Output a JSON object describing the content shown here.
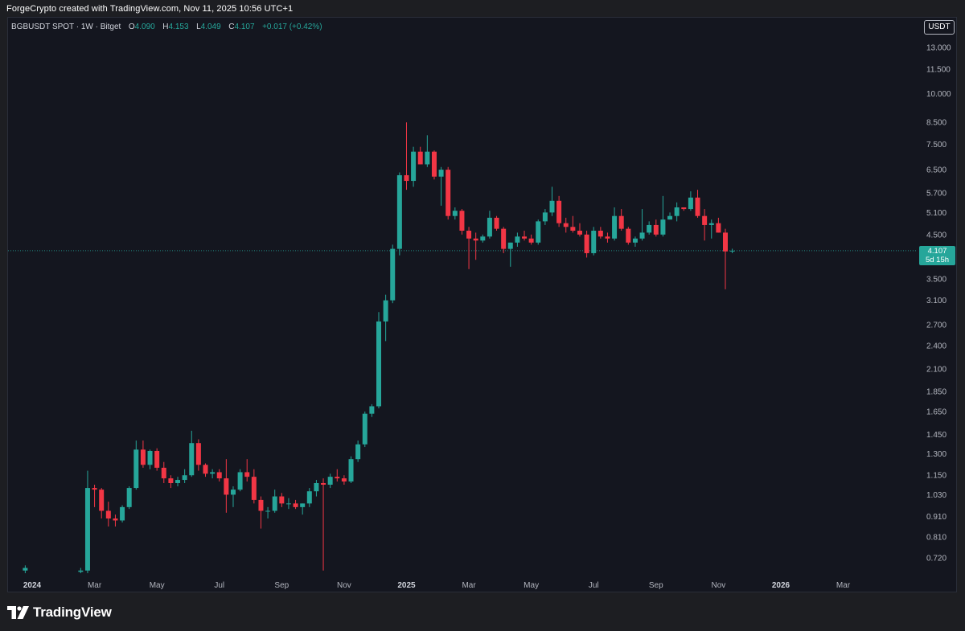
{
  "caption": "ForgeCrypto created with TradingView.com, Nov 11, 2025 10:56 UTC+1",
  "legend": {
    "symbol": "BGBUSDT SPOT · 1W · Bitget",
    "o_label": "O",
    "o_value": "4.090",
    "h_label": "H",
    "h_value": "4.153",
    "l_label": "L",
    "l_value": "4.049",
    "c_label": "C",
    "c_value": "4.107",
    "change": "+0.017 (+0.42%)"
  },
  "currency_button": "USDT",
  "price_tag": {
    "price": "4.107",
    "countdown": "5d 15h"
  },
  "brand": {
    "name": "TradingView",
    "icon": "tradingview-logo-icon"
  },
  "colors": {
    "up": "#26a69a",
    "down": "#f23645",
    "background": "#14161f",
    "frame": "#1d1e22"
  },
  "chart_data": {
    "type": "candlestick",
    "scale": "log",
    "ylim": [
      0.66,
      14.0
    ],
    "y_ticks": [
      "13.000",
      "11.500",
      "10.000",
      "8.500",
      "7.500",
      "6.500",
      "5.700",
      "5.100",
      "4.500",
      "3.500",
      "3.100",
      "2.700",
      "2.400",
      "2.100",
      "1.850",
      "1.650",
      "1.450",
      "1.300",
      "1.150",
      "1.030",
      "0.910",
      "0.810",
      "0.720"
    ],
    "x_ticks": [
      {
        "label": "2024",
        "week": 0,
        "bold": true
      },
      {
        "label": "Mar",
        "week": 9
      },
      {
        "label": "May",
        "week": 18
      },
      {
        "label": "Jul",
        "week": 27
      },
      {
        "label": "Sep",
        "week": 36
      },
      {
        "label": "Nov",
        "week": 45
      },
      {
        "label": "2025",
        "week": 54,
        "bold": true
      },
      {
        "label": "Mar",
        "week": 63
      },
      {
        "label": "May",
        "week": 72
      },
      {
        "label": "Jul",
        "week": 81
      },
      {
        "label": "Sep",
        "week": 90
      },
      {
        "label": "Nov",
        "week": 99
      },
      {
        "label": "2026",
        "week": 108,
        "bold": true
      },
      {
        "label": "Mar",
        "week": 117
      }
    ],
    "current_price": 4.107,
    "candles": [
      {
        "w": -1,
        "o": 0.67,
        "h": 0.69,
        "l": 0.66,
        "c": 0.68
      },
      {
        "w": 7,
        "o": 0.665,
        "h": 0.68,
        "l": 0.66,
        "c": 0.67
      },
      {
        "w": 8,
        "o": 0.67,
        "h": 1.18,
        "l": 0.66,
        "c": 1.07
      },
      {
        "w": 9,
        "o": 1.07,
        "h": 1.09,
        "l": 0.96,
        "c": 1.06
      },
      {
        "w": 10,
        "o": 1.06,
        "h": 1.07,
        "l": 0.9,
        "c": 0.94
      },
      {
        "w": 11,
        "o": 0.94,
        "h": 0.99,
        "l": 0.86,
        "c": 0.9
      },
      {
        "w": 12,
        "o": 0.9,
        "h": 0.92,
        "l": 0.86,
        "c": 0.89
      },
      {
        "w": 13,
        "o": 0.89,
        "h": 0.97,
        "l": 0.88,
        "c": 0.96
      },
      {
        "w": 14,
        "o": 0.96,
        "h": 1.08,
        "l": 0.95,
        "c": 1.07
      },
      {
        "w": 15,
        "o": 1.07,
        "h": 1.4,
        "l": 1.06,
        "c": 1.33
      },
      {
        "w": 16,
        "o": 1.33,
        "h": 1.4,
        "l": 1.2,
        "c": 1.22
      },
      {
        "w": 17,
        "o": 1.22,
        "h": 1.33,
        "l": 1.19,
        "c": 1.32
      },
      {
        "w": 18,
        "o": 1.32,
        "h": 1.34,
        "l": 1.18,
        "c": 1.2
      },
      {
        "w": 19,
        "o": 1.2,
        "h": 1.24,
        "l": 1.1,
        "c": 1.13
      },
      {
        "w": 20,
        "o": 1.13,
        "h": 1.15,
        "l": 1.07,
        "c": 1.1
      },
      {
        "w": 21,
        "o": 1.1,
        "h": 1.14,
        "l": 1.08,
        "c": 1.12
      },
      {
        "w": 22,
        "o": 1.12,
        "h": 1.19,
        "l": 1.1,
        "c": 1.15
      },
      {
        "w": 23,
        "o": 1.15,
        "h": 1.48,
        "l": 1.14,
        "c": 1.38
      },
      {
        "w": 24,
        "o": 1.38,
        "h": 1.41,
        "l": 1.18,
        "c": 1.22
      },
      {
        "w": 25,
        "o": 1.22,
        "h": 1.23,
        "l": 1.14,
        "c": 1.16
      },
      {
        "w": 26,
        "o": 1.16,
        "h": 1.19,
        "l": 1.13,
        "c": 1.17
      },
      {
        "w": 27,
        "o": 1.17,
        "h": 1.19,
        "l": 1.11,
        "c": 1.13
      },
      {
        "w": 28,
        "o": 1.13,
        "h": 1.26,
        "l": 0.93,
        "c": 1.03
      },
      {
        "w": 29,
        "o": 1.03,
        "h": 1.08,
        "l": 0.96,
        "c": 1.06
      },
      {
        "w": 30,
        "o": 1.06,
        "h": 1.19,
        "l": 1.05,
        "c": 1.17
      },
      {
        "w": 31,
        "o": 1.17,
        "h": 1.26,
        "l": 1.11,
        "c": 1.14
      },
      {
        "w": 32,
        "o": 1.14,
        "h": 1.19,
        "l": 0.98,
        "c": 1.0
      },
      {
        "w": 33,
        "o": 1.0,
        "h": 1.02,
        "l": 0.85,
        "c": 0.94
      },
      {
        "w": 34,
        "o": 0.94,
        "h": 0.96,
        "l": 0.9,
        "c": 0.94
      },
      {
        "w": 35,
        "o": 0.94,
        "h": 1.06,
        "l": 0.93,
        "c": 1.02
      },
      {
        "w": 36,
        "o": 1.02,
        "h": 1.04,
        "l": 0.96,
        "c": 0.98
      },
      {
        "w": 37,
        "o": 0.98,
        "h": 1.01,
        "l": 0.95,
        "c": 0.98
      },
      {
        "w": 38,
        "o": 0.98,
        "h": 1.0,
        "l": 0.95,
        "c": 0.96
      },
      {
        "w": 39,
        "o": 0.96,
        "h": 0.98,
        "l": 0.92,
        "c": 0.98
      },
      {
        "w": 40,
        "o": 0.98,
        "h": 1.07,
        "l": 0.96,
        "c": 1.05
      },
      {
        "w": 41,
        "o": 1.05,
        "h": 1.12,
        "l": 1.02,
        "c": 1.1
      },
      {
        "w": 42,
        "o": 1.1,
        "h": 1.13,
        "l": 0.67,
        "c": 1.09
      },
      {
        "w": 43,
        "o": 1.09,
        "h": 1.16,
        "l": 1.07,
        "c": 1.14
      },
      {
        "w": 44,
        "o": 1.14,
        "h": 1.19,
        "l": 1.11,
        "c": 1.13
      },
      {
        "w": 45,
        "o": 1.13,
        "h": 1.15,
        "l": 1.09,
        "c": 1.11
      },
      {
        "w": 46,
        "o": 1.11,
        "h": 1.28,
        "l": 1.1,
        "c": 1.26
      },
      {
        "w": 47,
        "o": 1.26,
        "h": 1.4,
        "l": 1.24,
        "c": 1.37
      },
      {
        "w": 48,
        "o": 1.37,
        "h": 1.65,
        "l": 1.35,
        "c": 1.63
      },
      {
        "w": 49,
        "o": 1.63,
        "h": 1.72,
        "l": 1.6,
        "c": 1.7
      },
      {
        "w": 50,
        "o": 1.7,
        "h": 2.9,
        "l": 1.68,
        "c": 2.75
      },
      {
        "w": 51,
        "o": 2.75,
        "h": 3.2,
        "l": 2.46,
        "c": 3.1
      },
      {
        "w": 52,
        "o": 3.1,
        "h": 4.25,
        "l": 3.05,
        "c": 4.15
      },
      {
        "w": 53,
        "o": 4.15,
        "h": 6.4,
        "l": 4.0,
        "c": 6.3
      },
      {
        "w": 54,
        "o": 6.3,
        "h": 8.5,
        "l": 5.8,
        "c": 6.1
      },
      {
        "w": 55,
        "o": 6.1,
        "h": 7.4,
        "l": 5.9,
        "c": 7.2
      },
      {
        "w": 56,
        "o": 7.2,
        "h": 7.4,
        "l": 6.7,
        "c": 6.7
      },
      {
        "w": 57,
        "o": 6.7,
        "h": 7.9,
        "l": 6.6,
        "c": 7.2
      },
      {
        "w": 58,
        "o": 7.2,
        "h": 7.25,
        "l": 6.15,
        "c": 6.25
      },
      {
        "w": 59,
        "o": 6.25,
        "h": 6.6,
        "l": 5.3,
        "c": 6.5
      },
      {
        "w": 60,
        "o": 6.5,
        "h": 6.6,
        "l": 4.9,
        "c": 5.0
      },
      {
        "w": 61,
        "o": 5.0,
        "h": 5.25,
        "l": 4.9,
        "c": 5.15
      },
      {
        "w": 62,
        "o": 5.15,
        "h": 5.2,
        "l": 4.5,
        "c": 4.6
      },
      {
        "w": 63,
        "o": 4.6,
        "h": 4.7,
        "l": 3.7,
        "c": 4.4
      },
      {
        "w": 64,
        "o": 4.4,
        "h": 4.55,
        "l": 3.9,
        "c": 4.35
      },
      {
        "w": 65,
        "o": 4.35,
        "h": 4.5,
        "l": 4.3,
        "c": 4.45
      },
      {
        "w": 66,
        "o": 4.45,
        "h": 5.15,
        "l": 4.4,
        "c": 4.95
      },
      {
        "w": 67,
        "o": 4.95,
        "h": 5.0,
        "l": 4.6,
        "c": 4.65
      },
      {
        "w": 68,
        "o": 4.65,
        "h": 4.7,
        "l": 4.05,
        "c": 4.15
      },
      {
        "w": 69,
        "o": 4.15,
        "h": 4.3,
        "l": 3.75,
        "c": 4.3
      },
      {
        "w": 70,
        "o": 4.3,
        "h": 4.55,
        "l": 4.2,
        "c": 4.45
      },
      {
        "w": 71,
        "o": 4.45,
        "h": 4.6,
        "l": 4.35,
        "c": 4.4
      },
      {
        "w": 72,
        "o": 4.4,
        "h": 4.5,
        "l": 4.25,
        "c": 4.3
      },
      {
        "w": 73,
        "o": 4.3,
        "h": 4.9,
        "l": 4.25,
        "c": 4.85
      },
      {
        "w": 74,
        "o": 4.85,
        "h": 5.2,
        "l": 4.75,
        "c": 5.1
      },
      {
        "w": 75,
        "o": 5.1,
        "h": 5.9,
        "l": 5.0,
        "c": 5.45
      },
      {
        "w": 76,
        "o": 5.45,
        "h": 5.6,
        "l": 4.7,
        "c": 4.8
      },
      {
        "w": 77,
        "o": 4.8,
        "h": 4.95,
        "l": 4.55,
        "c": 4.7
      },
      {
        "w": 78,
        "o": 4.7,
        "h": 5.0,
        "l": 4.55,
        "c": 4.6
      },
      {
        "w": 79,
        "o": 4.6,
        "h": 4.8,
        "l": 4.45,
        "c": 4.5
      },
      {
        "w": 80,
        "o": 4.5,
        "h": 4.6,
        "l": 3.95,
        "c": 4.05
      },
      {
        "w": 81,
        "o": 4.05,
        "h": 4.7,
        "l": 4.0,
        "c": 4.6
      },
      {
        "w": 82,
        "o": 4.6,
        "h": 4.7,
        "l": 4.4,
        "c": 4.45
      },
      {
        "w": 83,
        "o": 4.45,
        "h": 4.55,
        "l": 4.3,
        "c": 4.4
      },
      {
        "w": 84,
        "o": 4.4,
        "h": 5.25,
        "l": 4.35,
        "c": 5.0
      },
      {
        "w": 85,
        "o": 5.0,
        "h": 5.2,
        "l": 4.6,
        "c": 4.65
      },
      {
        "w": 86,
        "o": 4.65,
        "h": 4.7,
        "l": 4.25,
        "c": 4.3
      },
      {
        "w": 87,
        "o": 4.3,
        "h": 4.45,
        "l": 4.2,
        "c": 4.4
      },
      {
        "w": 88,
        "o": 4.4,
        "h": 5.2,
        "l": 4.35,
        "c": 4.55
      },
      {
        "w": 89,
        "o": 4.55,
        "h": 4.85,
        "l": 4.5,
        "c": 4.75
      },
      {
        "w": 90,
        "o": 4.75,
        "h": 4.9,
        "l": 4.45,
        "c": 4.5
      },
      {
        "w": 91,
        "o": 4.5,
        "h": 5.6,
        "l": 4.45,
        "c": 4.9
      },
      {
        "w": 92,
        "o": 4.9,
        "h": 5.1,
        "l": 4.9,
        "c": 5.0
      },
      {
        "w": 93,
        "o": 5.0,
        "h": 5.4,
        "l": 4.85,
        "c": 5.25
      },
      {
        "w": 94,
        "o": 5.25,
        "h": 5.25,
        "l": 5.15,
        "c": 5.2
      },
      {
        "w": 95,
        "o": 5.2,
        "h": 5.75,
        "l": 5.15,
        "c": 5.55
      },
      {
        "w": 96,
        "o": 5.55,
        "h": 5.8,
        "l": 4.95,
        "c": 5.0
      },
      {
        "w": 97,
        "o": 5.0,
        "h": 5.2,
        "l": 4.35,
        "c": 4.75
      },
      {
        "w": 98,
        "o": 4.75,
        "h": 4.9,
        "l": 4.4,
        "c": 4.8
      },
      {
        "w": 99,
        "o": 4.8,
        "h": 4.95,
        "l": 4.55,
        "c": 4.55
      },
      {
        "w": 100,
        "o": 4.55,
        "h": 4.65,
        "l": 3.3,
        "c": 4.09
      },
      {
        "w": 101,
        "o": 4.09,
        "h": 4.153,
        "l": 4.049,
        "c": 4.107
      }
    ]
  }
}
